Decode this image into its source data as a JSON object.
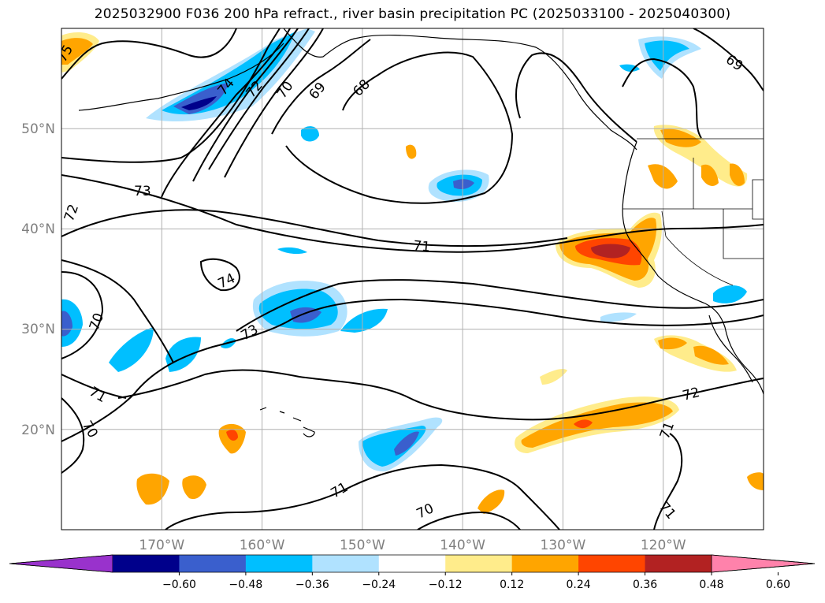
{
  "title": "2025032900 F036 200 hPa refract., river basin precipitation PC (2025033100 - 2025040300)",
  "map": {
    "projection": "PlateCarree",
    "lon_range": [
      -180,
      -110
    ],
    "lat_range": [
      10,
      60
    ],
    "lon_ticks": [
      "170°W",
      "160°W",
      "150°W",
      "140°W",
      "130°W",
      "120°W"
    ],
    "lat_ticks": [
      "50°N",
      "40°N",
      "30°N",
      "20°N"
    ],
    "gridline_color": "#b0b0b0",
    "tick_label_color": "#808080"
  },
  "contours": {
    "field": "200 hPa refractivity",
    "labels": [
      "75",
      "74",
      "72",
      "70",
      "69",
      "68",
      "69",
      "73",
      "72",
      "71",
      "74",
      "73",
      "70",
      "71",
      "70",
      "72",
      "71",
      "71",
      "70",
      "71"
    ]
  },
  "colorbar": {
    "extend": "both",
    "colors": [
      "#9932cc",
      "#00008b",
      "#3a5fcd",
      "#00bfff",
      "#b0e2ff",
      "#ffffff",
      "#ffec8b",
      "#ffa500",
      "#ff4500",
      "#b22222",
      "#ff82ab"
    ],
    "tick_labels": [
      "−0.60",
      "−0.48",
      "−0.36",
      "−0.24",
      "−0.12",
      "0.12",
      "0.24",
      "0.36",
      "0.48",
      "0.60"
    ]
  }
}
